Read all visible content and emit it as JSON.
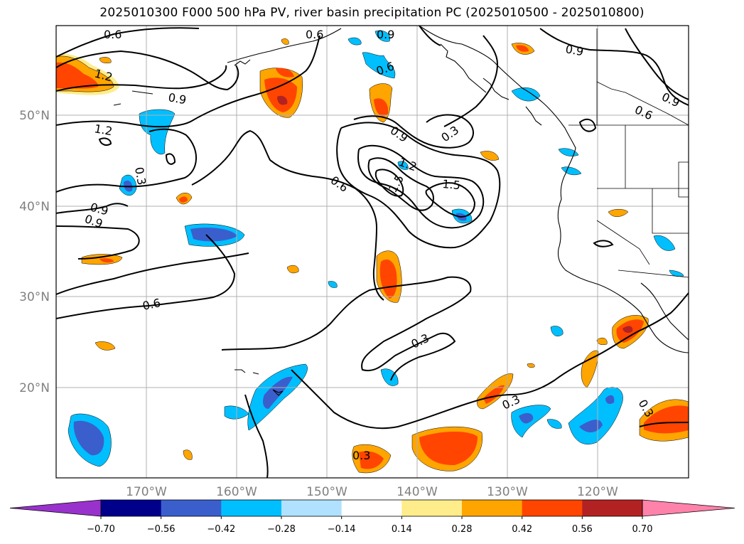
{
  "title": "2025010300 F000 500 hPa PV, river basin precipitation PC (2025010500 - 2025010800)",
  "latitude_labels": [
    "50°N",
    "40°N",
    "30°N",
    "20°N"
  ],
  "longitude_labels": [
    "170°W",
    "160°W",
    "150°W",
    "140°W",
    "130°W",
    "120°W"
  ],
  "contour_labels": [
    "0.6",
    "0.6",
    "0.9",
    "1.2",
    "0.9",
    "0.6",
    "0.9",
    "0.9",
    "1.2",
    "0.3",
    "0.6",
    "0.9",
    "0.3",
    "0.9",
    "0.6",
    "0.9",
    "1.2",
    "1.5",
    "1.5",
    "0.6",
    "0.3",
    "0.3",
    "0.3",
    "0.3",
    "0.6"
  ],
  "colorbar": {
    "ticks": [
      "−0.70",
      "−0.56",
      "−0.42",
      "−0.28",
      "−0.14",
      "0.14",
      "0.28",
      "0.42",
      "0.56",
      "0.70"
    ],
    "colors": [
      "#9932cc",
      "#00008b",
      "#3a5fcd",
      "#00bfff",
      "#b0e2ff",
      "#ffffff",
      "#ffec8b",
      "#ffa500",
      "#ff4500",
      "#b22222",
      "#ff82ab"
    ]
  },
  "colors": {
    "neg_weak": "#b0e2ff",
    "neg_mid": "#00bfff",
    "neg_strong": "#3a5fcd",
    "neg_max": "#00008b",
    "pos_weak": "#ffec8b",
    "pos_mid": "#ffa500",
    "pos_strong": "#ff4500",
    "pos_max": "#b22222",
    "contour": "#000000",
    "grid": "#b0b0b0",
    "axis_label": "#808080"
  }
}
